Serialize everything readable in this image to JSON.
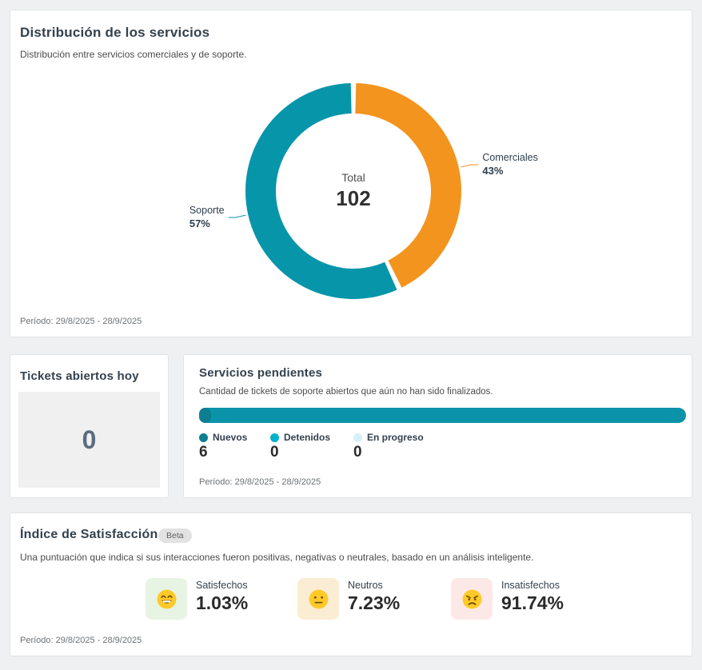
{
  "distribution_card": {
    "title": "Distribución de los servicios",
    "subtitle": "Distribución entre servicios comerciales y de soporte.",
    "period": "Período: 29/8/2025 - 28/9/2025",
    "center_label": "Total",
    "center_value": "102"
  },
  "tickets_card": {
    "title": "Tickets abiertos hoy",
    "value": "0"
  },
  "pending_card": {
    "title": "Servicios pendientes",
    "subtitle": "Cantidad de tickets de soporte abiertos que aún no han sido finalizados.",
    "period": "Período: 29/8/2025 - 28/9/2025"
  },
  "satisfaction_card": {
    "title": "Índice de Satisfacción",
    "badge": "Beta",
    "subtitle": "Una puntuación que indica si sus interacciones fueron positivas, negativas o neutrales, basado en un análisis inteligente.",
    "period": "Período: 29/8/2025 - 28/9/2025",
    "metrics": [
      {
        "label": "Satisfechos",
        "value": "1.03%",
        "emoji": "happy-emoji-icon",
        "tile_color": "#e7f4e4"
      },
      {
        "label": "Neutros",
        "value": "7.23%",
        "emoji": "neutral-emoji-icon",
        "tile_color": "#faedd3"
      },
      {
        "label": "Insatisfechos",
        "value": "91.74%",
        "emoji": "angry-emoji-icon",
        "tile_color": "#fce9e7"
      }
    ]
  },
  "chart_data": [
    {
      "type": "pie",
      "donut": true,
      "title": "Distribución de los servicios",
      "labels": [
        "Comerciales",
        "Soporte"
      ],
      "values": [
        43,
        57
      ],
      "colors": [
        "#f3941f",
        "#0795aa"
      ],
      "center_total": 102,
      "start_angle_deg": 0,
      "legend_position": "callout-labels",
      "callouts": [
        {
          "name": "Comerciales",
          "pct": "43%"
        },
        {
          "name": "Soporte",
          "pct": "57%"
        }
      ]
    },
    {
      "type": "bar",
      "orientation": "horizontal-stacked",
      "title": "Servicios pendientes",
      "categories": [
        "Nuevos",
        "Detenidos",
        "En progreso"
      ],
      "values": [
        6,
        0,
        0
      ],
      "colors": [
        "#0e7e93",
        "#00b1c9",
        "#d5f0f6"
      ],
      "bar_color": "#0b93a9",
      "bar_cap_color": "#0e7e93",
      "xlim": [
        0,
        6
      ],
      "grid": false
    }
  ]
}
